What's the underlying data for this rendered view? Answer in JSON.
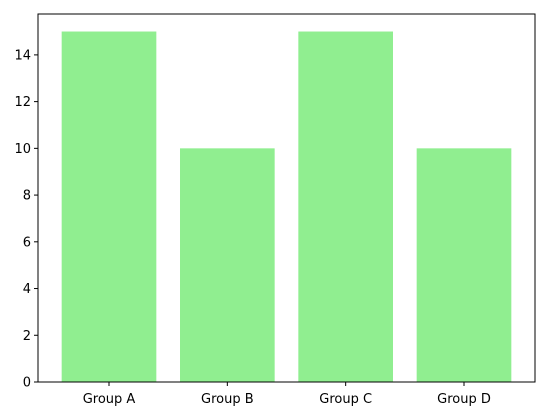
{
  "chart_data": {
    "type": "bar",
    "categories": [
      "Group A",
      "Group B",
      "Group C",
      "Group D"
    ],
    "values": [
      15,
      10,
      15,
      10
    ],
    "title": "",
    "xlabel": "",
    "ylabel": "",
    "ylim": [
      0,
      15.75
    ],
    "yticks": [
      0,
      2,
      4,
      6,
      8,
      10,
      12,
      14
    ],
    "grid": false,
    "bar_color": "#90ee90"
  }
}
